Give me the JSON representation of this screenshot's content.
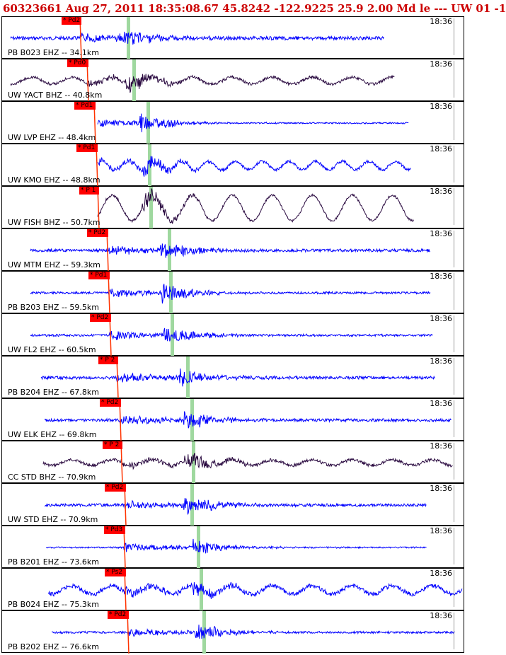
{
  "header": {
    "title": "60323661 Aug 27, 2011 18:35:08.67    45.8242 -122.9225 25.9 2.00 Md le --- UW 01   -1"
  },
  "colors": {
    "title": "#cc0000",
    "trace_blue": "#0000ff",
    "trace_dark": "#2a0a40",
    "pick_flag": "#ff0000",
    "s_marker": "#9fd89f",
    "p_line": "#ff3300"
  },
  "panels": [
    {
      "station": "PB B023 EHZ -- 34.1km",
      "time": "18:36",
      "pick": "Pd2",
      "trace": "blue",
      "amp": 4,
      "noise": 2.5,
      "wave": 0
    },
    {
      "station": "UW YACT BHZ -- 40.8km",
      "time": "18:36",
      "pick": "Pd0",
      "trace": "dark",
      "amp": 3,
      "noise": 2,
      "wave": 5
    },
    {
      "station": "UW LVP EHZ -- 48.4km",
      "time": "18:36",
      "pick": "Pd1",
      "trace": "blue",
      "amp": 4,
      "noise": 1,
      "wave": 0
    },
    {
      "station": "UW KMO EHZ -- 48.8km",
      "time": "18:36",
      "pick": "Pd1",
      "trace": "blue",
      "amp": 3,
      "noise": 2,
      "wave": 6
    },
    {
      "station": "UW FISH BHZ -- 50.7km",
      "time": "18:36",
      "pick": "P 1",
      "trace": "dark",
      "amp": 1,
      "noise": 1.5,
      "wave": 18
    },
    {
      "station": "UW MTM EHZ -- 59.3km",
      "time": "18:36",
      "pick": "Pd2",
      "trace": "blue",
      "amp": 4,
      "noise": 2,
      "wave": 0
    },
    {
      "station": "PB B203 EHZ -- 59.5km",
      "time": "18:36",
      "pick": "Pd1",
      "trace": "blue",
      "amp": 4,
      "noise": 1.5,
      "wave": 0
    },
    {
      "station": "UW FL2 EHZ -- 60.5km",
      "time": "18:36",
      "pick": "Pd2",
      "trace": "blue",
      "amp": 4,
      "noise": 1.5,
      "wave": 0
    },
    {
      "station": "PB B204 EHZ -- 67.8km",
      "time": "18:36",
      "pick": "P 2",
      "trace": "blue",
      "amp": 4,
      "noise": 2,
      "wave": 0
    },
    {
      "station": "UW ELK EHZ -- 69.8km",
      "time": "18:36",
      "pick": "Pd2",
      "trace": "blue",
      "amp": 4,
      "noise": 2,
      "wave": 0
    },
    {
      "station": "CC STD BHZ -- 70.9km",
      "time": "18:36",
      "pick": "P 2",
      "trace": "dark",
      "amp": 3,
      "noise": 2,
      "wave": 4
    },
    {
      "station": "UW STD EHZ -- 70.9km",
      "time": "18:36",
      "pick": "Pd2",
      "trace": "blue",
      "amp": 4,
      "noise": 2,
      "wave": 0
    },
    {
      "station": "PB B201 EHZ -- 73.6km",
      "time": "18:36",
      "pick": "Pd3",
      "trace": "blue",
      "amp": 4,
      "noise": 1,
      "wave": 0
    },
    {
      "station": "PB B024 EHZ -- 75.3km",
      "time": "18:36",
      "pick": "Ps2",
      "trace": "blue",
      "amp": 4,
      "noise": 3,
      "wave": 6
    },
    {
      "station": "PB B202 EHZ -- 76.6km",
      "time": "18:36",
      "pick": "Pd2",
      "trace": "blue",
      "amp": 4,
      "noise": 1.5,
      "wave": 0
    }
  ]
}
